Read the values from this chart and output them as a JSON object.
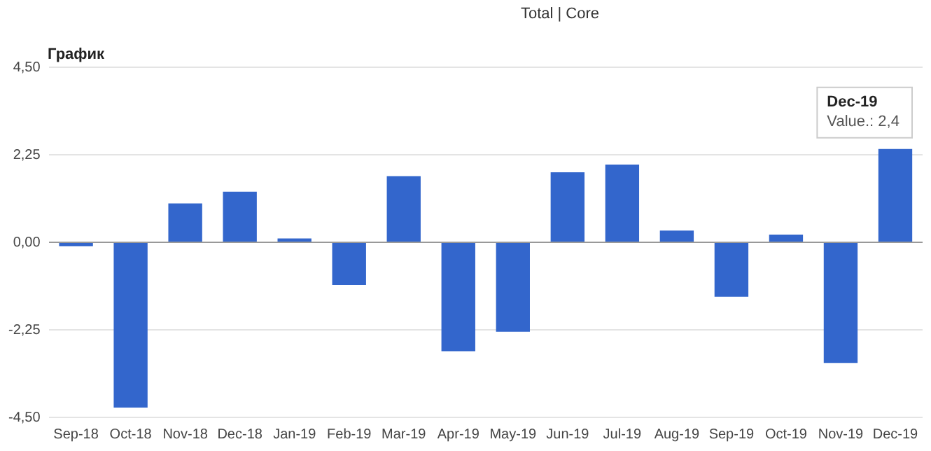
{
  "chart_data": {
    "type": "bar",
    "title": "График",
    "categories": [
      "Sep-18",
      "Oct-18",
      "Nov-18",
      "Dec-18",
      "Jan-19",
      "Feb-19",
      "Mar-19",
      "Apr-19",
      "May-19",
      "Jun-19",
      "Jul-19",
      "Aug-19",
      "Sep-19",
      "Oct-19",
      "Nov-19",
      "Dec-19"
    ],
    "values": [
      -0.1,
      -4.25,
      1.0,
      1.3,
      0.1,
      -1.1,
      1.7,
      -2.8,
      -2.3,
      1.8,
      2.0,
      0.3,
      -1.4,
      0.2,
      -3.1,
      2.4
    ],
    "color": "#3366cc",
    "ylim": [
      -4.5,
      4.5
    ],
    "yticks": [
      {
        "value": -4.5,
        "label": "-4,50"
      },
      {
        "value": -2.25,
        "label": "-2,25"
      },
      {
        "value": 0,
        "label": "0,00"
      },
      {
        "value": 2.25,
        "label": "2,25"
      },
      {
        "value": 4.5,
        "label": "4,50"
      }
    ],
    "grid": "y",
    "legend": false,
    "annotations": [
      "Total | Core",
      {
        "text": "Dec-19\nValue.: 2,4",
        "x": "Dec-19",
        "y": 2.4
      }
    ]
  }
}
